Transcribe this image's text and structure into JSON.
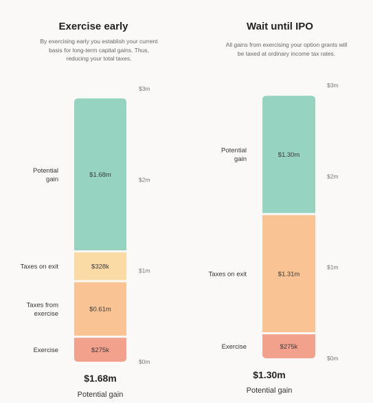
{
  "chart_data": [
    {
      "type": "bar",
      "title": "Exercise early",
      "subtitle": "By exercising early you establish your current basis for long-term capital gains. Thus, reducing your total taxes.",
      "stacked": true,
      "ylim": [
        0,
        3
      ],
      "ytick_labels": [
        "$0m",
        "$1m",
        "$2m",
        "$3m"
      ],
      "yticks": [
        0,
        1,
        2,
        3
      ],
      "segments": [
        {
          "name": "Exercise",
          "value": 0.275,
          "label": "$275k",
          "color": "#f2a18d"
        },
        {
          "name": "Taxes from exercise",
          "value": 0.61,
          "label": "$0.61m",
          "color": "#f9c393"
        },
        {
          "name": "Taxes on exit",
          "value": 0.328,
          "label": "$328k",
          "color": "#fadba6"
        },
        {
          "name": "Potential gain",
          "value": 1.68,
          "label": "$1.68m",
          "color": "#96d3c0"
        }
      ],
      "total_value": "$1.68m",
      "total_caption": "Potential gain"
    },
    {
      "type": "bar",
      "title": "Wait until IPO",
      "subtitle": "All gains from exercising your option grants will be taxed at ordinary income tax rates.",
      "stacked": true,
      "ylim": [
        0,
        3
      ],
      "ytick_labels": [
        "$0m",
        "$1m",
        "$2m",
        "$3m"
      ],
      "yticks": [
        0,
        1,
        2,
        3
      ],
      "segments": [
        {
          "name": "Exercise",
          "value": 0.275,
          "label": "$275k",
          "color": "#f2a18d"
        },
        {
          "name": "Taxes on exit",
          "value": 1.31,
          "label": "$1.31m",
          "color": "#f9c393"
        },
        {
          "name": "Potential gain",
          "value": 1.3,
          "label": "$1.30m",
          "color": "#96d3c0"
        }
      ],
      "total_value": "$1.30m",
      "total_caption": "Potential gain"
    }
  ]
}
